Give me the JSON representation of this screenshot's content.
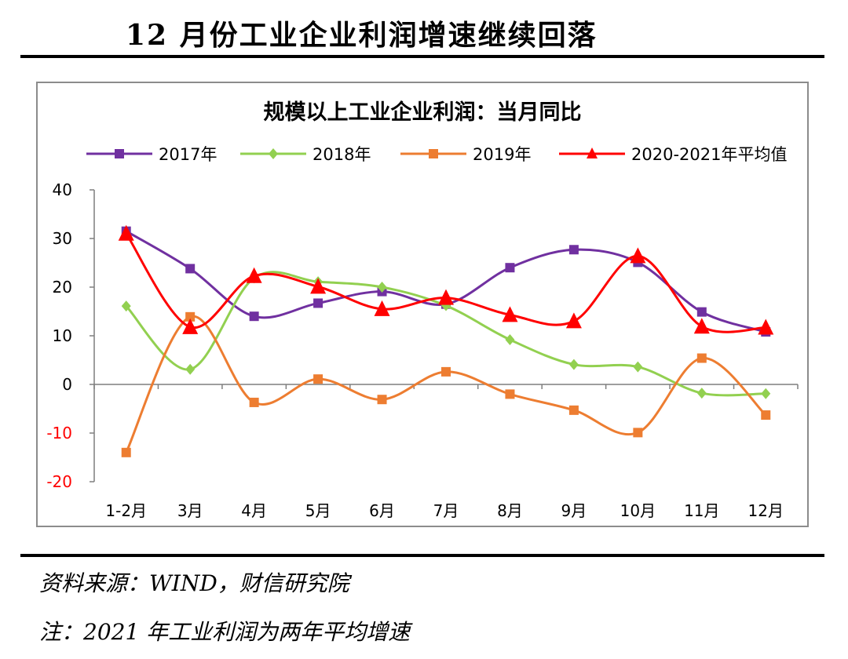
{
  "page": {
    "title": "12 月份工业企业利润增速继续回落",
    "source": "资料来源：WIND，财信研究院",
    "note": "注：2021 年工业利润为两年平均增速"
  },
  "chart_data": {
    "type": "line",
    "title": "规模以上工业企业利润：当月同比",
    "categories": [
      "1-2月",
      "3月",
      "4月",
      "5月",
      "6月",
      "7月",
      "8月",
      "9月",
      "10月",
      "11月",
      "12月"
    ],
    "ylim": [
      -20,
      40
    ],
    "yticks": [
      -20,
      -10,
      0,
      10,
      20,
      30,
      40
    ],
    "grid": false,
    "legend_position": "top",
    "smooth": true,
    "series": [
      {
        "name": "2017年",
        "color": "#7030a0",
        "marker": "square",
        "values": [
          31.5,
          23.8,
          14.0,
          16.7,
          19.1,
          16.5,
          24.0,
          27.7,
          25.1,
          14.9,
          10.8
        ]
      },
      {
        "name": "2018年",
        "color": "#92d050",
        "marker": "diamond",
        "values": [
          16.1,
          3.1,
          21.9,
          21.1,
          20.0,
          16.2,
          9.2,
          4.1,
          3.6,
          -1.8,
          -1.9
        ]
      },
      {
        "name": "2019年",
        "color": "#ed7d31",
        "marker": "square",
        "values": [
          -14.0,
          13.9,
          -3.7,
          1.1,
          -3.1,
          2.6,
          -2.0,
          -5.3,
          -9.9,
          5.4,
          -6.3
        ]
      },
      {
        "name": "2020-2021年平均值",
        "color": "#ff0000",
        "marker": "triangle",
        "values": [
          31.0,
          11.8,
          22.3,
          20.1,
          15.5,
          17.8,
          14.3,
          13.0,
          26.4,
          11.9,
          11.7
        ]
      }
    ]
  }
}
